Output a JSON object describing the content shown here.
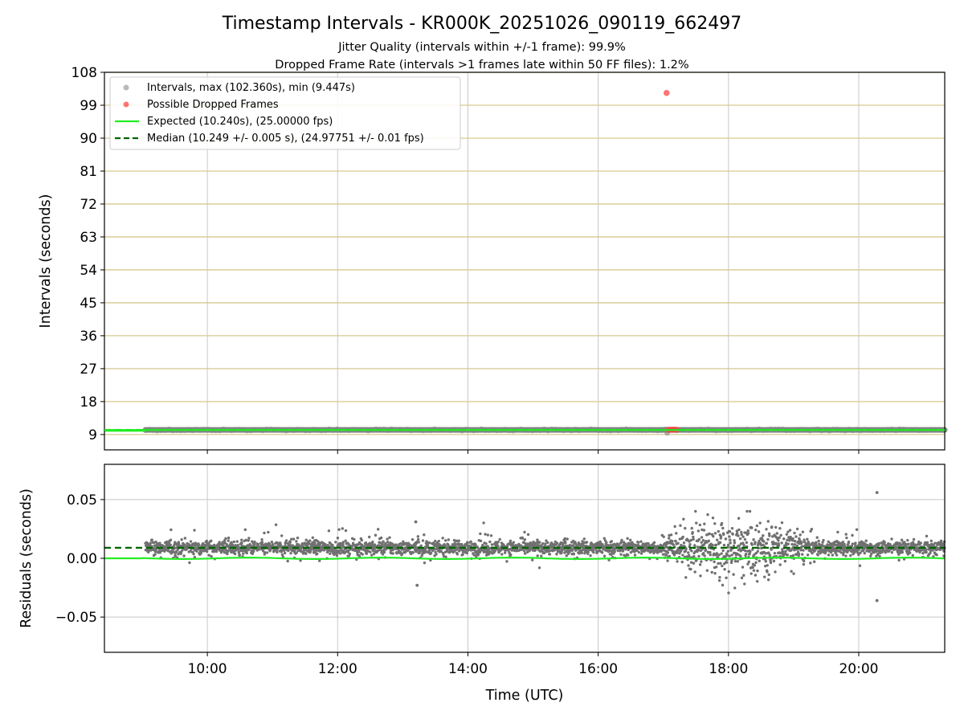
{
  "chart_data": [
    {
      "panel": "top",
      "type": "scatter",
      "title": "Timestamp Intervals - KR000K_20251026_090119_662497",
      "subtitle_1": "Jitter Quality (intervals within +/-1 frame): 99.9%",
      "subtitle_2": "Dropped Frame Rate (intervals >1 frames late within 50 FF files): 1.2%",
      "ylabel": "Intervals (seconds)",
      "xlabel": "",
      "xlim_hours": [
        8.42,
        21.32
      ],
      "ylim": [
        4.8,
        108
      ],
      "yticks": [
        9,
        18,
        27,
        36,
        45,
        54,
        63,
        72,
        81,
        90,
        99,
        108
      ],
      "ytick_labels": [
        "9",
        "18",
        "27",
        "36",
        "45",
        "54",
        "63",
        "72",
        "81",
        "90",
        "99",
        "108"
      ],
      "xticks_hours": [
        10,
        12,
        14,
        16,
        18,
        20
      ],
      "grid": true,
      "legend_position": "top-left",
      "legend": [
        {
          "label": "Intervals, max (102.360s), min (9.447s)",
          "kind": "marker",
          "color": "#808080"
        },
        {
          "label": "Possible Dropped Frames",
          "kind": "marker",
          "color": "#ff3b3b"
        },
        {
          "label": "Expected (10.240s), (25.00000 fps)",
          "kind": "solid-line",
          "color": "#22ee22"
        },
        {
          "label": "Median (10.249 +/- 0.005 s), (24.97751 +/- 0.01 fps)",
          "kind": "dashed-line",
          "color": "#006400"
        }
      ],
      "series": [
        {
          "name": "Intervals",
          "color": "#808080",
          "x_range_hours": [
            9.05,
            21.32
          ],
          "y_value": 10.25
        },
        {
          "name": "Possible Dropped Frames",
          "color": "#ff3b3b",
          "points": [
            [
              17.05,
              102.36
            ],
            [
              17.08,
              10.3
            ],
            [
              17.12,
              10.3
            ],
            [
              17.16,
              10.3
            ],
            [
              17.2,
              10.3
            ]
          ]
        },
        {
          "name": "Expected",
          "color": "#22ee22",
          "y_value": 10.24
        },
        {
          "name": "Median",
          "color": "#006400",
          "y_value": 10.249
        }
      ],
      "min_point": [
        17.06,
        9.447
      ]
    },
    {
      "panel": "bottom",
      "type": "scatter",
      "title": "",
      "ylabel": "Residuals (seconds)",
      "xlabel": "Time (UTC)",
      "xlim_hours": [
        8.42,
        21.32
      ],
      "ylim": [
        -0.08,
        0.08
      ],
      "yticks": [
        -0.05,
        0.0,
        0.05
      ],
      "ytick_labels": [
        "−0.05",
        "0.00",
        "0.05"
      ],
      "xticks_hours": [
        10,
        12,
        14,
        16,
        18,
        20
      ],
      "xtick_labels": [
        "10:00",
        "12:00",
        "14:00",
        "16:00",
        "18:00",
        "20:00"
      ],
      "grid": true,
      "series": [
        {
          "name": "Residuals",
          "color": "#707070",
          "x_range_hours": [
            9.05,
            21.32
          ],
          "center": 0.009,
          "spread": 0.004,
          "high_jitter_range_hours": [
            16.9,
            19.4
          ],
          "high_jitter_spread": 0.012
        },
        {
          "name": "Residual outliers",
          "color": "#707070",
          "points": [
            [
              20.28,
              0.056
            ],
            [
              20.28,
              -0.036
            ],
            [
              13.22,
              -0.023
            ],
            [
              13.2,
              0.031
            ]
          ]
        },
        {
          "name": "Expected",
          "color": "#22ee22",
          "y_value": 0.0
        },
        {
          "name": "Median",
          "color": "#006400",
          "y_value": 0.009
        }
      ]
    }
  ]
}
